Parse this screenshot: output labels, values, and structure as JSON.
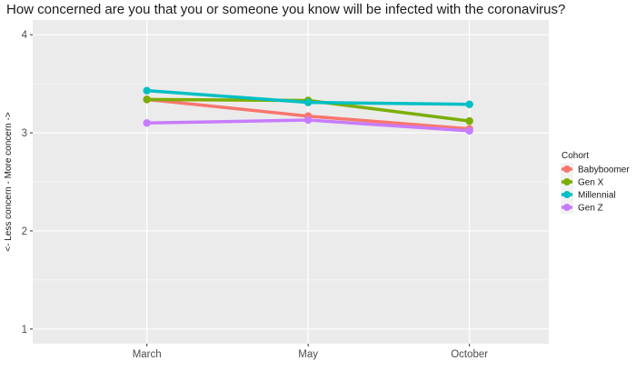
{
  "chart_data": {
    "type": "line",
    "title": "How concerned are you that you or someone you know will be infected with the coronavirus?",
    "xlabel": "",
    "ylabel": "<- Less concern - More concern ->",
    "categories": [
      "March",
      "May",
      "October"
    ],
    "ylim": [
      0.85,
      4.15
    ],
    "yticks": [
      1,
      2,
      3,
      4
    ],
    "grid": true,
    "legend_title": "Cohort",
    "legend_position": "right",
    "series": [
      {
        "name": "Babyboomer",
        "color": "#F8766D",
        "values": [
          3.34,
          3.17,
          3.04
        ]
      },
      {
        "name": "Gen X",
        "color": "#7CAE00",
        "values": [
          3.34,
          3.33,
          3.12
        ]
      },
      {
        "name": "Millennial",
        "color": "#00BFC4",
        "values": [
          3.43,
          3.31,
          3.29
        ]
      },
      {
        "name": "Gen Z",
        "color": "#C77CFF",
        "values": [
          3.1,
          3.13,
          3.02
        ]
      }
    ]
  }
}
